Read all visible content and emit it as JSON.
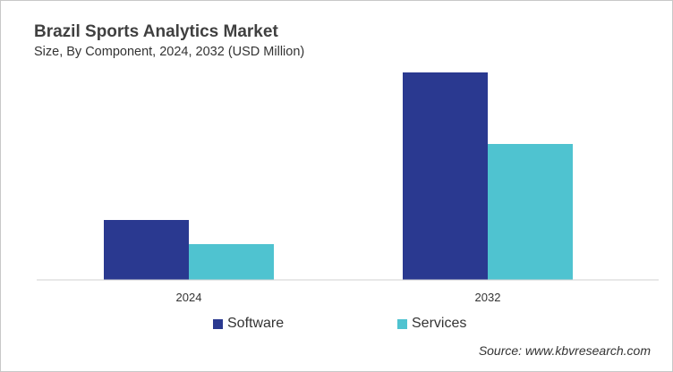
{
  "chart_data": {
    "type": "bar",
    "title": "Brazil Sports Analytics Market",
    "subtitle": "Size, By Component, 2024, 2032 (USD Million)",
    "categories": [
      "2024",
      "2032"
    ],
    "series": [
      {
        "name": "Software",
        "values": [
          67,
          232
        ],
        "color": "#2a3990"
      },
      {
        "name": "Services",
        "values": [
          40,
          152
        ],
        "color": "#4fc3d0"
      }
    ],
    "xlabel": "",
    "ylabel": "",
    "grid": false,
    "y_axis_shown": false,
    "legend_placement": "bottom",
    "source": "Source: www.kbvresearch.com"
  }
}
